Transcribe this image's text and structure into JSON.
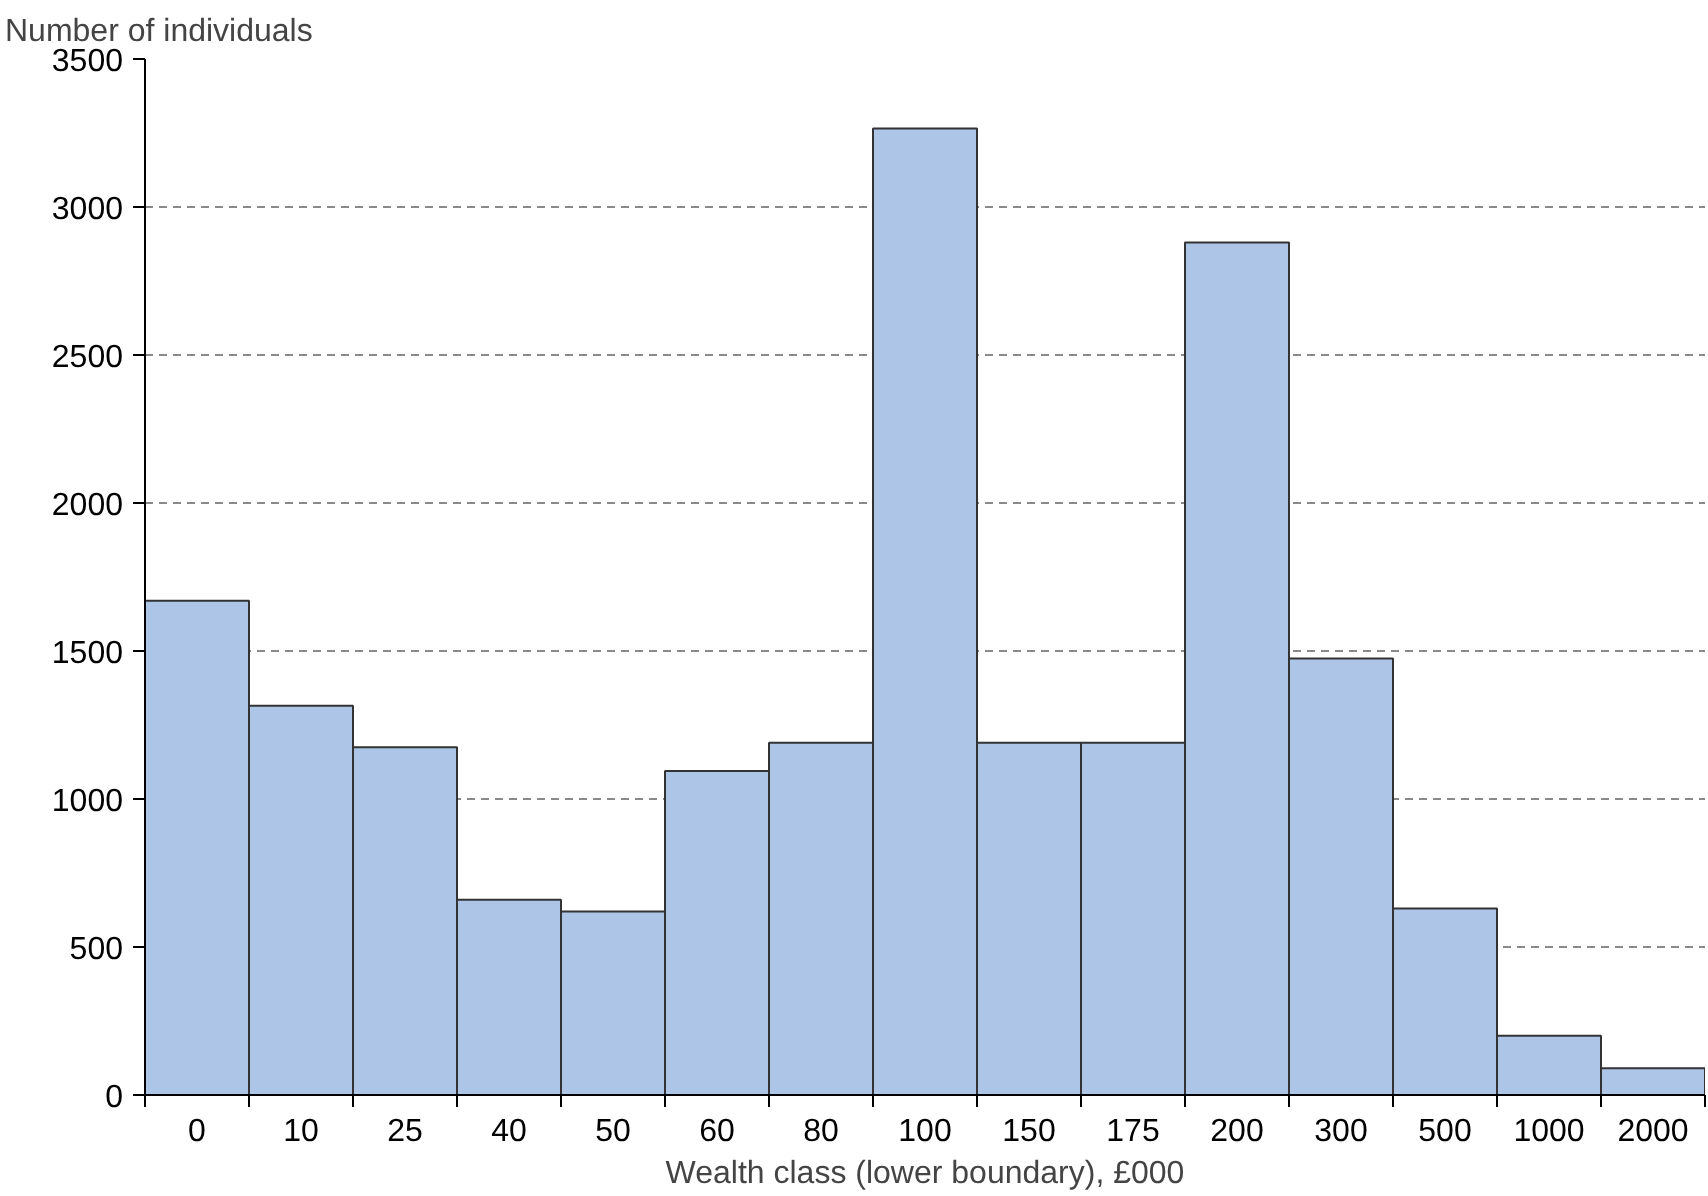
{
  "chart_data": {
    "type": "bar",
    "ylabel": "Number of individuals",
    "xlabel": "Wealth class (lower boundary), £000",
    "categories": [
      "0",
      "10",
      "25",
      "40",
      "50",
      "60",
      "80",
      "100",
      "150",
      "175",
      "200",
      "300",
      "500",
      "1000",
      "2000"
    ],
    "values": [
      1670,
      1315,
      1175,
      660,
      620,
      1095,
      1190,
      3265,
      1190,
      1190,
      2880,
      1475,
      630,
      200,
      90
    ],
    "color": "#adc6e8",
    "ylim": [
      0,
      3500
    ],
    "yticks": [
      0,
      500,
      1000,
      1500,
      2000,
      2500,
      3000,
      3500
    ],
    "grid": "y"
  }
}
